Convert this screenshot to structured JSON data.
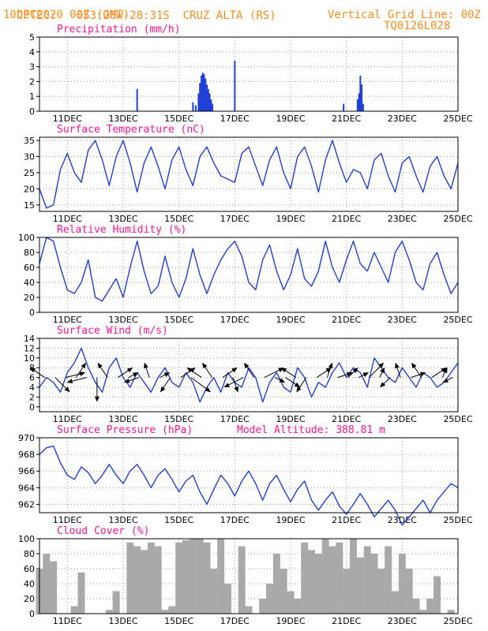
{
  "header": {
    "source": "CPTEC:",
    "coords": "053:26W-28:31S",
    "station": "CRUZ ALTA (RS)",
    "init_time": "10DEC2020 00Z (GMT)",
    "grid_note": "Vertical Grid Line: 00Z",
    "model_code": "TQ0126L028"
  },
  "colors": {
    "header": "#ff8c1a",
    "panel_title": "#ff1493",
    "series": "#1f3fd6",
    "cloud": "#a9a9a9",
    "wind_vector": "#000000",
    "grid": "#9a9a9a"
  },
  "chart_data": [
    {
      "type": "bar",
      "title": "Precipitation (mm/h)",
      "x_tick_labels": [
        "11DEC",
        "13DEC",
        "15DEC",
        "17DEC",
        "19DEC",
        "21DEC",
        "23DEC",
        "25DEC"
      ],
      "xlim": [
        0,
        15
      ],
      "ylim": [
        0,
        5
      ],
      "y_ticks": [
        0,
        1,
        2,
        3,
        4,
        5
      ],
      "grid": true,
      "x": [
        3.5,
        5.5,
        5.6,
        5.7,
        5.75,
        5.8,
        5.85,
        5.9,
        5.95,
        6.0,
        6.05,
        6.1,
        6.15,
        6.2,
        7.0,
        10.9,
        11.4,
        11.45,
        11.5,
        11.55,
        11.6
      ],
      "values": [
        1.5,
        0.6,
        0.4,
        1.2,
        1.9,
        2.4,
        2.6,
        2.5,
        2.2,
        1.8,
        1.5,
        1.2,
        0.8,
        0.5,
        3.4,
        0.5,
        0.8,
        1.2,
        2.4,
        1.8,
        0.5
      ]
    },
    {
      "type": "line",
      "title": "Surface Temperature (nC)",
      "x_tick_labels": [
        "11DEC",
        "13DEC",
        "15DEC",
        "17DEC",
        "19DEC",
        "21DEC",
        "23DEC",
        "25DEC"
      ],
      "xlim": [
        0,
        15
      ],
      "ylim": [
        13,
        36
      ],
      "y_ticks": [
        15,
        20,
        25,
        30,
        35
      ],
      "grid": true,
      "x": [
        0.0,
        0.25,
        0.5,
        0.75,
        1.0,
        1.25,
        1.5,
        1.75,
        2.0,
        2.25,
        2.5,
        2.75,
        3.0,
        3.25,
        3.5,
        3.75,
        4.0,
        4.25,
        4.5,
        4.75,
        5.0,
        5.25,
        5.5,
        5.75,
        6.0,
        6.25,
        6.5,
        6.75,
        7.0,
        7.25,
        7.5,
        7.75,
        8.0,
        8.25,
        8.5,
        8.75,
        9.0,
        9.25,
        9.5,
        9.75,
        10.0,
        10.25,
        10.5,
        10.75,
        11.0,
        11.25,
        11.5,
        11.75,
        12.0,
        12.25,
        12.5,
        12.75,
        13.0,
        13.25,
        13.5,
        13.75,
        14.0,
        14.25,
        14.5,
        14.75,
        15.0
      ],
      "values": [
        20,
        14,
        15,
        26,
        31,
        25,
        22,
        32,
        35,
        29,
        21,
        30,
        35,
        28,
        19,
        28,
        33,
        27,
        20,
        29,
        33,
        26,
        21,
        30,
        33,
        28,
        24,
        23,
        22,
        31,
        33,
        27,
        21,
        29,
        33,
        25,
        20,
        30,
        33,
        27,
        19,
        29,
        35,
        28,
        22,
        26,
        25,
        20,
        29,
        31,
        24,
        19,
        28,
        30,
        24,
        19,
        27,
        30,
        24,
        20,
        28
      ]
    },
    {
      "type": "line",
      "title": "Relative Humidity (%)",
      "x_tick_labels": [
        "11DEC",
        "13DEC",
        "15DEC",
        "17DEC",
        "19DEC",
        "21DEC",
        "23DEC",
        "25DEC"
      ],
      "xlim": [
        0,
        15
      ],
      "ylim": [
        0,
        100
      ],
      "y_ticks": [
        0,
        20,
        40,
        60,
        80,
        100
      ],
      "grid": true,
      "x": [
        0.0,
        0.25,
        0.5,
        0.75,
        1.0,
        1.25,
        1.5,
        1.75,
        2.0,
        2.25,
        2.5,
        2.75,
        3.0,
        3.25,
        3.5,
        3.75,
        4.0,
        4.25,
        4.5,
        4.75,
        5.0,
        5.25,
        5.5,
        5.75,
        6.0,
        6.25,
        6.5,
        6.75,
        7.0,
        7.25,
        7.5,
        7.75,
        8.0,
        8.25,
        8.5,
        8.75,
        9.0,
        9.25,
        9.5,
        9.75,
        10.0,
        10.25,
        10.5,
        10.75,
        11.0,
        11.25,
        11.5,
        11.75,
        12.0,
        12.25,
        12.5,
        12.75,
        13.0,
        13.25,
        13.5,
        13.75,
        14.0,
        14.25,
        14.5,
        14.75,
        15.0
      ],
      "values": [
        65,
        100,
        95,
        60,
        30,
        25,
        40,
        70,
        20,
        15,
        30,
        45,
        20,
        60,
        95,
        55,
        25,
        35,
        75,
        40,
        20,
        45,
        85,
        50,
        25,
        50,
        70,
        85,
        95,
        75,
        40,
        30,
        70,
        90,
        55,
        30,
        50,
        85,
        45,
        35,
        55,
        95,
        60,
        40,
        70,
        95,
        65,
        55,
        80,
        60,
        40,
        80,
        95,
        70,
        40,
        30,
        65,
        80,
        50,
        25,
        40
      ]
    },
    {
      "type": "line",
      "title": "Surface Wind (m/s)",
      "x_tick_labels": [
        "11DEC",
        "13DEC",
        "15DEC",
        "17DEC",
        "19DEC",
        "21DEC",
        "23DEC",
        "25DEC"
      ],
      "xlim": [
        0,
        15
      ],
      "ylim": [
        -1,
        14
      ],
      "y_ticks": [
        0,
        2,
        4,
        6,
        8,
        10,
        12,
        14
      ],
      "grid": true,
      "x": [
        0.0,
        0.25,
        0.5,
        0.75,
        1.0,
        1.25,
        1.5,
        1.75,
        2.0,
        2.25,
        2.5,
        2.75,
        3.0,
        3.25,
        3.5,
        3.75,
        4.0,
        4.25,
        4.5,
        4.75,
        5.0,
        5.25,
        5.5,
        5.75,
        6.0,
        6.25,
        6.5,
        6.75,
        7.0,
        7.25,
        7.5,
        7.75,
        8.0,
        8.25,
        8.5,
        8.75,
        9.0,
        9.25,
        9.5,
        9.75,
        10.0,
        10.25,
        10.5,
        10.75,
        11.0,
        11.25,
        11.5,
        11.75,
        12.0,
        12.25,
        12.5,
        12.75,
        13.0,
        13.25,
        13.5,
        13.75,
        14.0,
        14.25,
        14.5,
        14.75,
        15.0
      ],
      "values": [
        4,
        6,
        5,
        3,
        7,
        9,
        12,
        8,
        5,
        3,
        8,
        10,
        6,
        4,
        7,
        5,
        3,
        6,
        8,
        5,
        4,
        7,
        5,
        1,
        4,
        6,
        3,
        7,
        5,
        4,
        8,
        6,
        1,
        5,
        7,
        4,
        3,
        8,
        6,
        2,
        5,
        4,
        7,
        9,
        6,
        8,
        7,
        4,
        10,
        8,
        6,
        5,
        8,
        6,
        4,
        7,
        6,
        4,
        5,
        7,
        9
      ],
      "vectors_u": [
        -3,
        3,
        4,
        2,
        -4,
        0,
        -2,
        3,
        2,
        -3,
        -1,
        2,
        -2,
        3,
        4,
        -3,
        -2,
        3,
        1,
        -4,
        -2,
        4,
        2,
        3,
        -3,
        -2,
        3,
        1,
        3,
        2,
        2,
        3,
        1,
        -2,
        -1,
        3,
        -2,
        3,
        1,
        -2
      ],
      "vectors_v": [
        2,
        -3,
        1,
        3,
        -1,
        -5,
        3,
        2,
        1,
        -1,
        3,
        1,
        -3,
        2,
        -3,
        2,
        3,
        2,
        -3,
        -2,
        3,
        2,
        -1,
        -2,
        2,
        -3,
        2,
        3,
        1,
        2,
        1,
        3,
        2,
        -2,
        3,
        1,
        3,
        2,
        2,
        -1
      ]
    },
    {
      "type": "line",
      "title": "Surface Pressure (hPa)",
      "annotation": "Model Altitude: 388.81 m",
      "x_tick_labels": [
        "11DEC",
        "13DEC",
        "15DEC",
        "17DEC",
        "19DEC",
        "21DEC",
        "23DEC",
        "25DEC"
      ],
      "xlim": [
        0,
        15
      ],
      "ylim": [
        961,
        970
      ],
      "y_ticks": [
        962,
        964,
        966,
        968,
        970
      ],
      "grid": true,
      "x": [
        0.0,
        0.25,
        0.5,
        0.75,
        1.0,
        1.25,
        1.5,
        1.75,
        2.0,
        2.25,
        2.5,
        2.75,
        3.0,
        3.25,
        3.5,
        3.75,
        4.0,
        4.25,
        4.5,
        4.75,
        5.0,
        5.25,
        5.5,
        5.75,
        6.0,
        6.25,
        6.5,
        6.75,
        7.0,
        7.25,
        7.5,
        7.75,
        8.0,
        8.25,
        8.5,
        8.75,
        9.0,
        9.25,
        9.5,
        9.75,
        10.0,
        10.25,
        10.5,
        10.75,
        11.0,
        11.25,
        11.5,
        11.75,
        12.0,
        12.25,
        12.5,
        12.75,
        13.0,
        13.25,
        13.5,
        13.75,
        14.0,
        14.25,
        14.5,
        14.75,
        15.0
      ],
      "values": [
        968,
        968.8,
        969,
        967,
        965.5,
        965,
        966.5,
        965.8,
        964.5,
        965.5,
        966.8,
        965.5,
        964.5,
        966,
        966.8,
        965.5,
        964,
        965.5,
        966.3,
        965,
        963.5,
        964.8,
        965.5,
        963.5,
        962,
        963.8,
        965.5,
        964.5,
        963,
        964.8,
        966,
        964.5,
        962.5,
        964.5,
        965.5,
        963.8,
        962.3,
        963.8,
        964.8,
        962.5,
        961.3,
        962.5,
        963.5,
        961.8,
        960.8,
        962,
        963.3,
        962,
        960.5,
        961.5,
        962.5,
        961.3,
        959.5,
        960.5,
        961.5,
        962.5,
        961,
        962.5,
        963.5,
        964.5,
        964
      ]
    },
    {
      "type": "area",
      "title": "Cloud Cover (%)",
      "x_tick_labels": [
        "11DEC",
        "13DEC",
        "15DEC",
        "17DEC",
        "19DEC",
        "21DEC",
        "23DEC",
        "25DEC"
      ],
      "xlim": [
        0,
        15
      ],
      "ylim": [
        0,
        100
      ],
      "y_ticks": [
        0,
        20,
        40,
        60,
        80,
        100
      ],
      "grid": true,
      "x": [
        0.0,
        0.25,
        0.5,
        0.75,
        1.0,
        1.25,
        1.5,
        1.75,
        2.0,
        2.25,
        2.5,
        2.75,
        3.0,
        3.25,
        3.5,
        3.75,
        4.0,
        4.25,
        4.5,
        4.75,
        5.0,
        5.25,
        5.5,
        5.75,
        6.0,
        6.25,
        6.5,
        6.75,
        7.0,
        7.25,
        7.5,
        7.75,
        8.0,
        8.25,
        8.5,
        8.75,
        9.0,
        9.25,
        9.5,
        9.75,
        10.0,
        10.25,
        10.5,
        10.75,
        11.0,
        11.25,
        11.5,
        11.75,
        12.0,
        12.25,
        12.5,
        12.75,
        13.0,
        13.25,
        13.5,
        13.75,
        14.0,
        14.25,
        14.5,
        14.75,
        15.0
      ],
      "values": [
        60,
        80,
        70,
        0,
        0,
        10,
        55,
        0,
        0,
        0,
        5,
        30,
        0,
        95,
        90,
        85,
        95,
        90,
        5,
        10,
        95,
        98,
        100,
        100,
        95,
        60,
        100,
        40,
        0,
        90,
        10,
        0,
        20,
        40,
        80,
        60,
        30,
        20,
        95,
        85,
        80,
        100,
        90,
        95,
        60,
        100,
        75,
        90,
        80,
        60,
        90,
        30,
        80,
        60,
        20,
        5,
        20,
        50,
        0,
        5,
        0
      ]
    }
  ]
}
